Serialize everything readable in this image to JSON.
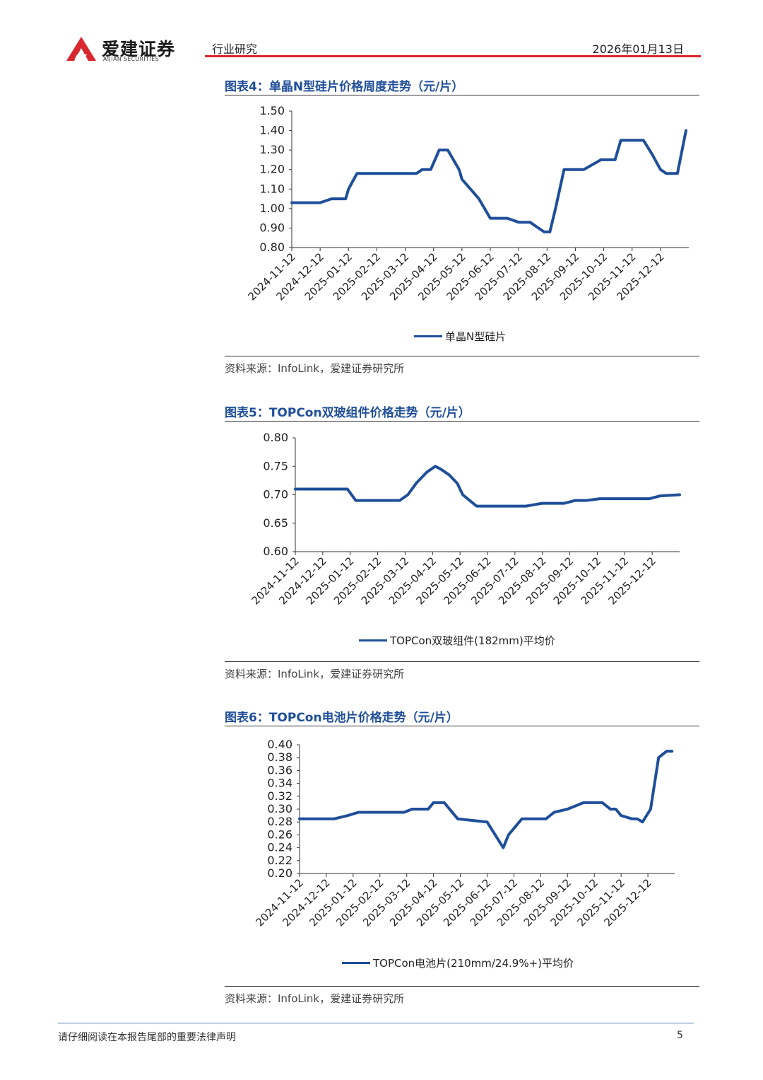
{
  "header": {
    "logo_cn": "爱建证券",
    "logo_en": "AIJIAN SECURITIES",
    "category": "行业研究",
    "date": "2026年01月13日",
    "brand_color": "#d8272f"
  },
  "figures": [
    {
      "title": "图表4：单晶N型硅片价格周度走势（元/片）",
      "legend": "单晶N型硅片",
      "source": "资料来源：InfoLink，爱建证券研究所"
    },
    {
      "title": "图表5：TOPCon双玻组件价格走势（元/片）",
      "legend": "TOPCon双玻组件(182mm)平均价",
      "source": "资料来源：InfoLink，爱建证券研究所"
    },
    {
      "title": "图表6：TOPCon电池片价格走势（元/片）",
      "legend": "TOPCon电池片(210mm/24.9%+)平均价",
      "source": "资料来源：InfoLink，爱建证券研究所"
    }
  ],
  "chart_data": [
    {
      "type": "line",
      "title": "单晶N型硅片价格周度走势（元/片）",
      "categories": [
        "2024-11-12",
        "2024-12-12",
        "2025-01-12",
        "2025-02-12",
        "2025-03-12",
        "2025-04-12",
        "2025-05-12",
        "2025-06-12",
        "2025-07-12",
        "2025-08-12",
        "2025-09-12",
        "2025-10-12",
        "2025-11-12",
        "2025-12-12"
      ],
      "yticks": [
        "0.80",
        "0.90",
        "1.00",
        "1.10",
        "1.20",
        "1.30",
        "1.40",
        "1.50"
      ],
      "ylim": [
        0.8,
        1.5
      ],
      "x_span": [
        0,
        13.9
      ],
      "color": "#1f4e9a",
      "series": [
        {
          "name": "单晶N型硅片",
          "x": [
            0,
            0.7,
            1,
            1.4,
            1.9,
            2.0,
            2.3,
            3.0,
            3.8,
            4.0,
            4.4,
            4.6,
            4.9,
            5.2,
            5.5,
            5.9,
            6.0,
            6.6,
            7.0,
            7.3,
            7.6,
            8.0,
            8.4,
            8.9,
            9.1,
            9.3,
            9.6,
            9.9,
            10.3,
            10.9,
            11.4,
            11.6,
            11.8,
            12.0,
            12.4,
            12.7,
            13.0,
            13.2,
            13.6,
            13.9
          ],
          "values": [
            1.03,
            1.03,
            1.03,
            1.05,
            1.05,
            1.1,
            1.18,
            1.18,
            1.18,
            1.18,
            1.18,
            1.2,
            1.2,
            1.3,
            1.3,
            1.2,
            1.15,
            1.05,
            0.95,
            0.95,
            0.95,
            0.93,
            0.93,
            0.88,
            0.88,
            1.0,
            1.2,
            1.2,
            1.2,
            1.25,
            1.25,
            1.35,
            1.35,
            1.35,
            1.35,
            1.28,
            1.2,
            1.18,
            1.18,
            1.4
          ]
        }
      ]
    },
    {
      "type": "line",
      "title": "TOPCon双玻组件价格走势（元/片）",
      "categories": [
        "2024-11-12",
        "2024-12-12",
        "2025-01-12",
        "2025-02-12",
        "2025-03-12",
        "2025-04-12",
        "2025-05-12",
        "2025-06-12",
        "2025-07-12",
        "2025-08-12",
        "2025-09-12",
        "2025-10-12",
        "2025-11-12",
        "2025-12-12"
      ],
      "yticks": [
        "0.60",
        "0.65",
        "0.70",
        "0.75",
        "0.80"
      ],
      "ylim": [
        0.6,
        0.8
      ],
      "x_span": [
        0,
        14
      ],
      "color": "#1f4e9a",
      "series": [
        {
          "name": "TOPCon双玻组件(182mm)平均价",
          "x": [
            0,
            0.5,
            1.0,
            1.5,
            1.9,
            2.2,
            2.8,
            3.3,
            3.8,
            4.1,
            4.4,
            4.8,
            5.1,
            5.3,
            5.6,
            5.9,
            6.1,
            6.6,
            7.1,
            7.6,
            8.1,
            8.4,
            9.0,
            9.4,
            9.8,
            10.2,
            10.6,
            11.1,
            11.6,
            12.2,
            12.6,
            12.9,
            13.3,
            14.0
          ],
          "values": [
            0.71,
            0.71,
            0.71,
            0.71,
            0.71,
            0.69,
            0.69,
            0.69,
            0.69,
            0.7,
            0.72,
            0.74,
            0.75,
            0.745,
            0.735,
            0.72,
            0.7,
            0.68,
            0.68,
            0.68,
            0.68,
            0.68,
            0.685,
            0.685,
            0.685,
            0.69,
            0.69,
            0.693,
            0.693,
            0.693,
            0.693,
            0.693,
            0.698,
            0.7
          ]
        }
      ]
    },
    {
      "type": "line",
      "title": "TOPCon电池片价格走势（元/片）",
      "categories": [
        "2024-11-12",
        "2024-12-12",
        "2025-01-12",
        "2025-02-12",
        "2025-03-12",
        "2025-04-12",
        "2025-05-12",
        "2025-06-12",
        "2025-07-12",
        "2025-08-12",
        "2025-09-12",
        "2025-10-12",
        "2025-11-12",
        "2025-12-12"
      ],
      "yticks": [
        "0.20",
        "0.22",
        "0.24",
        "0.26",
        "0.28",
        "0.30",
        "0.32",
        "0.34",
        "0.36",
        "0.38",
        "0.40"
      ],
      "ylim": [
        0.2,
        0.4
      ],
      "x_span": [
        0,
        14
      ],
      "color": "#1f4e9a",
      "series": [
        {
          "name": "TOPCon电池片(210mm/24.9%+)平均价",
          "x": [
            0,
            0.6,
            1.3,
            1.8,
            2.2,
            3.0,
            3.6,
            3.9,
            4.2,
            4.4,
            4.8,
            5.0,
            5.4,
            5.6,
            5.9,
            7.0,
            7.6,
            7.8,
            8.3,
            8.8,
            9.2,
            9.5,
            10.0,
            10.6,
            11.0,
            11.3,
            11.6,
            11.8,
            12.0,
            12.4,
            12.6,
            12.8,
            13.1,
            13.4,
            13.7,
            13.9
          ],
          "values": [
            0.285,
            0.285,
            0.285,
            0.29,
            0.295,
            0.295,
            0.295,
            0.295,
            0.3,
            0.3,
            0.3,
            0.31,
            0.31,
            0.3,
            0.285,
            0.28,
            0.24,
            0.26,
            0.285,
            0.285,
            0.285,
            0.295,
            0.3,
            0.31,
            0.31,
            0.31,
            0.3,
            0.3,
            0.29,
            0.285,
            0.285,
            0.28,
            0.3,
            0.38,
            0.39,
            0.39
          ]
        }
      ]
    }
  ],
  "footer": {
    "disclaimer": "请仔细阅读在本报告尾部的重要法律声明",
    "page_number": "5"
  }
}
